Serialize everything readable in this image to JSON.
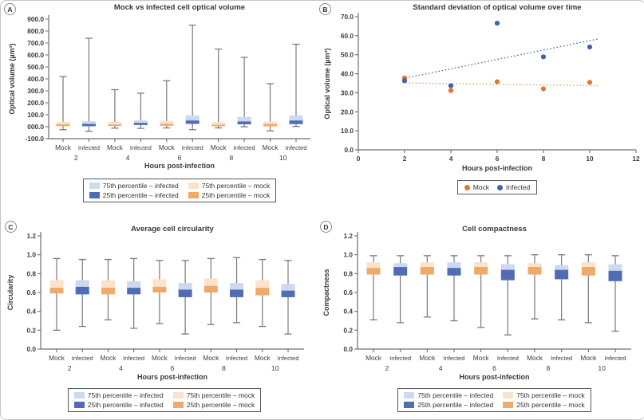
{
  "figure": {
    "description": "Four-panel scientific figure comparing mock vs infected cells",
    "panel_labels": [
      "A",
      "B",
      "C",
      "D"
    ]
  },
  "colors": {
    "infected_light": "#ccd9ef",
    "infected_dark": "#4f6cb5",
    "mock_light": "#fbe3cb",
    "mock_dark": "#efa968",
    "mock_point": "#e6762d",
    "infected_point": "#4162ae",
    "mock_trend": "#f0a04e",
    "infected_trend": "#4a6cb5",
    "whisker": "#7a7a7a",
    "axis": "#6e6e6e",
    "title_text": "#35383f",
    "tick_text": "#3d3d3d"
  },
  "chart_data": [
    {
      "type": "boxplot",
      "panel": "A",
      "title": "Mock vs infected cell optical volume",
      "xlabel": "Hours post-infection",
      "ylabel": "Optical volume (µm³)",
      "ylim": [
        -100,
        900
      ],
      "ytick_values": [
        900,
        800,
        700,
        600,
        500,
        400,
        300,
        200,
        100,
        0,
        -100
      ],
      "ytick_labels": [
        "900.0",
        "800.0",
        "700.0",
        "600.0",
        "500.0",
        "400.0",
        "300.0",
        "200.0",
        "100.0",
        "000.0",
        "-100.0"
      ],
      "hours": [
        2,
        4,
        6,
        8,
        10
      ],
      "group_labels": [
        "Mock",
        "Infected"
      ],
      "series": [
        {
          "name": "Mock",
          "whisker_low": [
            -25,
            -12,
            -10,
            -10,
            -35
          ],
          "q1": [
            5,
            6,
            8,
            4,
            4
          ],
          "median": [
            20,
            18,
            24,
            16,
            22
          ],
          "q3": [
            42,
            40,
            48,
            38,
            44
          ],
          "whisker_high": [
            420,
            310,
            385,
            650,
            360
          ]
        },
        {
          "name": "Infected",
          "whisker_low": [
            -38,
            -14,
            -25,
            0,
            2
          ],
          "q1": [
            4,
            14,
            24,
            20,
            22
          ],
          "median": [
            24,
            32,
            52,
            44,
            52
          ],
          "q3": [
            46,
            54,
            95,
            82,
            95
          ],
          "whisker_high": [
            740,
            280,
            850,
            580,
            690
          ]
        }
      ],
      "legend": [
        {
          "label": "75th percentile – infected",
          "swatch": "infected_light"
        },
        {
          "label": "75th percentile – mock",
          "swatch": "mock_light"
        },
        {
          "label": "25th percentile – infected",
          "swatch": "infected_dark"
        },
        {
          "label": "25th percentile – mock",
          "swatch": "mock_dark"
        }
      ]
    },
    {
      "type": "scatter",
      "panel": "B",
      "title": "Standard deviation of optical volume over time",
      "xlabel": "Hours post-infection",
      "ylabel": "Optical volume (µm³)",
      "xlim": [
        0,
        12
      ],
      "ylim": [
        0,
        70
      ],
      "xtick_values": [
        0,
        2,
        4,
        6,
        8,
        10,
        12
      ],
      "xtick_labels": [
        "0",
        "2",
        "4",
        "6",
        "8",
        "10",
        "12"
      ],
      "ytick_values": [
        70,
        60,
        50,
        40,
        30,
        20,
        10,
        0
      ],
      "ytick_labels": [
        "70.0",
        "60.0",
        "50.0",
        "40.0",
        "30.0",
        "20.0",
        "10.0",
        "0.0"
      ],
      "series": [
        {
          "name": "Mock",
          "swatch": "mock_point",
          "trend_color": "mock_trend",
          "x": [
            2,
            4,
            6,
            8,
            10
          ],
          "y": [
            37.8,
            31.2,
            35.8,
            32.1,
            35.5
          ],
          "trend": {
            "x1": 1.9,
            "y1": 35.2,
            "x2": 10.35,
            "y2": 33.7
          }
        },
        {
          "name": "Infected",
          "swatch": "infected_point",
          "trend_color": "infected_trend",
          "x": [
            2,
            4,
            6,
            8,
            10
          ],
          "y": [
            36.4,
            33.7,
            66.6,
            48.9,
            54.1
          ],
          "trend": {
            "x1": 1.9,
            "y1": 37.4,
            "x2": 10.35,
            "y2": 58.3
          }
        }
      ],
      "legend": [
        {
          "label": "Mock",
          "swatch": "mock_point"
        },
        {
          "label": "Infected",
          "swatch": "infected_point"
        }
      ]
    },
    {
      "type": "boxplot",
      "panel": "C",
      "title": "Average cell circularity",
      "xlabel": "Hours post-infection",
      "ylabel": "Circularity",
      "ylim": [
        0,
        1.2
      ],
      "ytick_values": [
        1.2,
        1.0,
        0.8,
        0.6,
        0.4,
        0.2,
        0.0
      ],
      "ytick_labels": [
        "1.2",
        "1.0",
        "0.8",
        "0.6",
        "0.4",
        "0.2",
        "0.0"
      ],
      "hours": [
        2,
        4,
        6,
        8,
        10
      ],
      "group_labels": [
        "Mock",
        "Infected"
      ],
      "series": [
        {
          "name": "Mock",
          "whisker_low": [
            0.2,
            0.31,
            0.27,
            0.26,
            0.24
          ],
          "q1": [
            0.59,
            0.58,
            0.6,
            0.6,
            0.57
          ],
          "median": [
            0.65,
            0.65,
            0.66,
            0.67,
            0.65
          ],
          "q3": [
            0.73,
            0.73,
            0.74,
            0.75,
            0.73
          ],
          "whisker_high": [
            0.96,
            0.95,
            0.94,
            0.96,
            0.95
          ]
        },
        {
          "name": "Infected",
          "whisker_low": [
            0.24,
            0.22,
            0.16,
            0.28,
            0.16
          ],
          "q1": [
            0.58,
            0.58,
            0.55,
            0.55,
            0.55
          ],
          "median": [
            0.66,
            0.65,
            0.63,
            0.63,
            0.62
          ],
          "q3": [
            0.73,
            0.72,
            0.7,
            0.7,
            0.69
          ],
          "whisker_high": [
            0.95,
            0.96,
            0.94,
            0.97,
            0.94
          ]
        }
      ],
      "legend": [
        {
          "label": "75th percentile – infected",
          "swatch": "infected_light"
        },
        {
          "label": "75th percentile – mock",
          "swatch": "mock_light"
        },
        {
          "label": "25th percentile – infected",
          "swatch": "infected_dark"
        },
        {
          "label": "25th percentile – mock",
          "swatch": "mock_dark"
        }
      ]
    },
    {
      "type": "boxplot",
      "panel": "D",
      "title": "Cell compactness",
      "xlabel": "Hours post-infection",
      "ylabel": "Compactness",
      "ylim": [
        0,
        1.2
      ],
      "ytick_values": [
        1.2,
        1.0,
        0.8,
        0.6,
        0.4,
        0.2,
        0.0
      ],
      "ytick_labels": [
        "1.2",
        "1.0",
        "0.8",
        "0.6",
        "0.4",
        "0.2",
        "0.0"
      ],
      "hours": [
        2,
        4,
        6,
        8,
        10
      ],
      "group_labels": [
        "Mock",
        "Infected"
      ],
      "series": [
        {
          "name": "Mock",
          "whisker_low": [
            0.31,
            0.34,
            0.23,
            0.32,
            0.28
          ],
          "q1": [
            0.79,
            0.79,
            0.79,
            0.79,
            0.78
          ],
          "median": [
            0.86,
            0.87,
            0.87,
            0.87,
            0.87
          ],
          "q3": [
            0.92,
            0.92,
            0.92,
            0.91,
            0.92
          ],
          "whisker_high": [
            0.99,
            0.99,
            0.99,
            1.0,
            1.0
          ]
        },
        {
          "name": "Infected",
          "whisker_low": [
            0.28,
            0.3,
            0.15,
            0.31,
            0.19
          ],
          "q1": [
            0.78,
            0.78,
            0.73,
            0.74,
            0.72
          ],
          "median": [
            0.87,
            0.86,
            0.84,
            0.84,
            0.83
          ],
          "q3": [
            0.91,
            0.92,
            0.9,
            0.89,
            0.9
          ],
          "whisker_high": [
            0.99,
            0.99,
            0.99,
            1.0,
            0.99
          ]
        }
      ],
      "legend": [
        {
          "label": "75th percentile – infected",
          "swatch": "infected_light"
        },
        {
          "label": "75th percentile – mock",
          "swatch": "mock_light"
        },
        {
          "label": "25th percentile – infected",
          "swatch": "infected_dark"
        },
        {
          "label": "25th percentile – mock",
          "swatch": "mock_dark"
        }
      ]
    }
  ]
}
